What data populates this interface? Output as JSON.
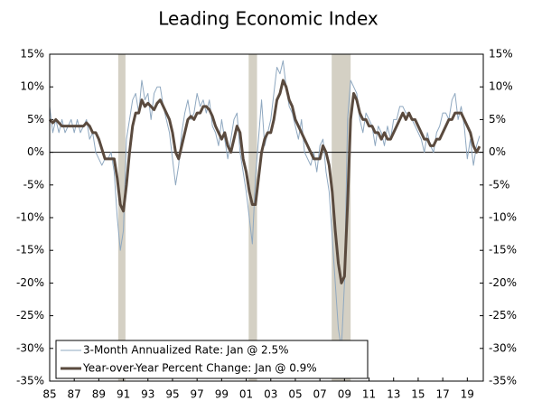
{
  "chart_data": {
    "type": "line",
    "title": "Leading Economic Index",
    "x": [
      1985,
      1985.25,
      1985.5,
      1985.75,
      1986,
      1986.25,
      1986.5,
      1986.75,
      1987,
      1987.25,
      1987.5,
      1987.75,
      1988,
      1988.25,
      1988.5,
      1988.75,
      1989,
      1989.25,
      1989.5,
      1989.75,
      1990,
      1990.25,
      1990.5,
      1990.75,
      1991,
      1991.25,
      1991.5,
      1991.75,
      1992,
      1992.25,
      1992.5,
      1992.75,
      1993,
      1993.25,
      1993.5,
      1993.75,
      1994,
      1994.25,
      1994.5,
      1994.75,
      1995,
      1995.25,
      1995.5,
      1995.75,
      1996,
      1996.25,
      1996.5,
      1996.75,
      1997,
      1997.25,
      1997.5,
      1997.75,
      1998,
      1998.25,
      1998.5,
      1998.75,
      1999,
      1999.25,
      1999.5,
      1999.75,
      2000,
      2000.25,
      2000.5,
      2000.75,
      2001,
      2001.25,
      2001.5,
      2001.75,
      2002,
      2002.25,
      2002.5,
      2002.75,
      2003,
      2003.25,
      2003.5,
      2003.75,
      2004,
      2004.25,
      2004.5,
      2004.75,
      2005,
      2005.25,
      2005.5,
      2005.75,
      2006,
      2006.25,
      2006.5,
      2006.75,
      2007,
      2007.25,
      2007.5,
      2007.75,
      2008,
      2008.25,
      2008.5,
      2008.75,
      2009,
      2009.25,
      2009.5,
      2009.75,
      2010,
      2010.25,
      2010.5,
      2010.75,
      2011,
      2011.25,
      2011.5,
      2011.75,
      2012,
      2012.25,
      2012.5,
      2012.75,
      2013,
      2013.25,
      2013.5,
      2013.75,
      2014,
      2014.25,
      2014.5,
      2014.75,
      2015,
      2015.25,
      2015.5,
      2015.75,
      2016,
      2016.25,
      2016.5,
      2016.75,
      2017,
      2017.25,
      2017.5,
      2017.75,
      2018,
      2018.25,
      2018.5,
      2018.75,
      2019,
      2019.25,
      2019.5,
      2019.75,
      2020
    ],
    "series": [
      {
        "name": "3-Month Annualized Rate: Jan @ 2.5%",
        "color": "#8fa8c0",
        "width": 1,
        "values": [
          7,
          3,
          5,
          3,
          5,
          3,
          4,
          5,
          3,
          5,
          3,
          4,
          5,
          2,
          3,
          0,
          -1,
          -2,
          -1,
          -1,
          0,
          -3,
          -10,
          -15,
          -12,
          2,
          5,
          8,
          9,
          6,
          11,
          8,
          9,
          5,
          9,
          10,
          10,
          7,
          5,
          3,
          -1,
          -5,
          -2,
          3,
          6,
          8,
          5,
          6,
          9,
          7,
          8,
          6,
          8,
          4,
          3,
          1,
          5,
          2,
          -1,
          2,
          5,
          6,
          0,
          -3,
          -6,
          -10,
          -14,
          -4,
          2,
          8,
          1,
          3,
          5,
          9,
          13,
          12,
          14,
          10,
          7,
          6,
          4,
          2,
          5,
          0,
          -1,
          -2,
          0,
          -3,
          1,
          2,
          -3,
          -6,
          -13,
          -20,
          -27,
          -30,
          -20,
          5,
          11,
          10,
          9,
          5,
          3,
          6,
          5,
          4,
          1,
          4,
          3,
          1,
          4,
          2,
          5,
          5,
          7,
          7,
          6,
          6,
          5,
          4,
          3,
          2,
          0,
          3,
          1,
          0,
          3,
          4,
          6,
          6,
          5,
          8,
          9,
          5,
          7,
          4,
          -1,
          2,
          -2,
          1,
          2.5
        ]
      },
      {
        "name": "Year-over-Year Percent Change: Jan @ 0.9%",
        "color": "#5a4a3e",
        "width": 3,
        "values": [
          5,
          4.5,
          5,
          4.5,
          4,
          4,
          4,
          4,
          4,
          4,
          4,
          4,
          4.5,
          4,
          3,
          3,
          2,
          0.5,
          -1,
          -1,
          -1,
          -1,
          -4,
          -8,
          -9,
          -5,
          0,
          4,
          6,
          6,
          8,
          7,
          7.5,
          7,
          6.5,
          7.5,
          8,
          7,
          6,
          5,
          3,
          0,
          -1,
          1,
          3,
          5,
          5.5,
          5,
          6,
          6,
          7,
          7,
          6.5,
          5.5,
          4,
          3,
          2,
          3,
          1,
          0,
          2,
          4,
          3,
          -1,
          -3,
          -6,
          -8,
          -8,
          -4,
          0,
          2,
          3,
          3,
          5,
          8,
          9,
          11,
          10,
          8,
          7,
          5,
          4,
          3,
          2,
          1,
          0,
          -1,
          -1,
          -1,
          1,
          0,
          -2,
          -6,
          -12,
          -17,
          -20,
          -19,
          -8,
          5,
          9,
          8,
          6,
          5,
          5,
          4,
          4,
          3,
          3,
          2,
          3,
          2,
          2,
          3,
          4,
          5,
          6,
          5,
          6,
          5,
          5,
          4,
          3,
          2,
          2,
          1,
          1,
          2,
          2,
          3,
          4,
          5,
          5,
          6,
          6,
          6,
          5,
          4,
          3,
          1,
          0,
          0.9
        ]
      }
    ],
    "recessions": [
      [
        1990.58,
        1991.17
      ],
      [
        2001.2,
        2001.88
      ],
      [
        2007.96,
        2009.5
      ]
    ],
    "recession_color": "#d4d0c4",
    "xlim": [
      1985,
      2020.3
    ],
    "ylim": [
      -35,
      15
    ],
    "y2lim": [
      -35,
      15
    ],
    "xticks": [
      {
        "value": 1985,
        "label": "85"
      },
      {
        "value": 1987,
        "label": "87"
      },
      {
        "value": 1989,
        "label": "89"
      },
      {
        "value": 1991,
        "label": "91"
      },
      {
        "value": 1993,
        "label": "93"
      },
      {
        "value": 1995,
        "label": "95"
      },
      {
        "value": 1997,
        "label": "97"
      },
      {
        "value": 1999,
        "label": "99"
      },
      {
        "value": 2001,
        "label": "01"
      },
      {
        "value": 2003,
        "label": "03"
      },
      {
        "value": 2005,
        "label": "05"
      },
      {
        "value": 2007,
        "label": "07"
      },
      {
        "value": 2009,
        "label": "09"
      },
      {
        "value": 2011,
        "label": "11"
      },
      {
        "value": 2013,
        "label": "13"
      },
      {
        "value": 2015,
        "label": "15"
      },
      {
        "value": 2017,
        "label": "17"
      },
      {
        "value": 2019,
        "label": "19"
      }
    ],
    "yticks": [
      {
        "value": 15,
        "label": "15%"
      },
      {
        "value": 10,
        "label": "10%"
      },
      {
        "value": 5,
        "label": "5%"
      },
      {
        "value": 0,
        "label": "0%"
      },
      {
        "value": -5,
        "label": "-5%"
      },
      {
        "value": -10,
        "label": "-10%"
      },
      {
        "value": -15,
        "label": "-15%"
      },
      {
        "value": -20,
        "label": "-20%"
      },
      {
        "value": -25,
        "label": "-25%"
      },
      {
        "value": -30,
        "label": "-30%"
      },
      {
        "value": -35,
        "label": "-35%"
      }
    ],
    "y2ticks": [
      {
        "value": 15,
        "label": "15%"
      },
      {
        "value": 10,
        "label": "10%"
      },
      {
        "value": 5,
        "label": "5%"
      },
      {
        "value": 0,
        "label": "0%"
      },
      {
        "value": -5,
        "label": "-5%"
      },
      {
        "value": -10,
        "label": "-10%"
      },
      {
        "value": -15,
        "label": "-15%"
      },
      {
        "value": -20,
        "label": "-20%"
      },
      {
        "value": -25,
        "label": "-25%"
      },
      {
        "value": -30,
        "label": "-30%"
      },
      {
        "value": -35,
        "label": "-35%"
      }
    ],
    "grid": false,
    "legend": "lower left"
  }
}
